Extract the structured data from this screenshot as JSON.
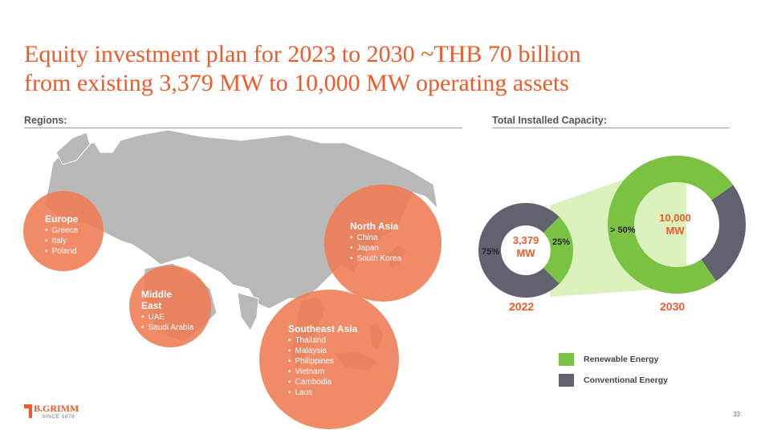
{
  "title": {
    "line1": "Equity investment plan for 2023 to 2030 ~THB 70 billion",
    "line2": "from existing 3,379 MW to 10,000 MW operating assets"
  },
  "regions_heading": "Regions:",
  "capacity_heading": "Total Installed Capacity:",
  "regions": [
    {
      "name": "Europe",
      "items": [
        "Greece",
        "Italy",
        "Poland"
      ]
    },
    {
      "name": "Middle East",
      "items": [
        "UAE",
        "Saudi Arabia"
      ]
    },
    {
      "name": "North Asia",
      "items": [
        "China",
        "Japan",
        "South Korea"
      ]
    },
    {
      "name": "Southeast Asia",
      "items": [
        "Thailand",
        "Malaysia",
        "Philippines",
        "Vietnam",
        "Cambodia",
        "Laos"
      ]
    }
  ],
  "chart_data": {
    "type": "pie",
    "title": "Total Installed Capacity:",
    "legend": [
      "Renewable Energy",
      "Conventional Energy"
    ],
    "colors": {
      "renewable": "#7cc242",
      "conventional": "#616270",
      "accent": "#ee5a2a"
    },
    "series": [
      {
        "name": "2022",
        "center_label": [
          "3,379",
          "MW"
        ],
        "values": [
          25,
          75
        ],
        "labels": [
          "25%",
          "75%"
        ]
      },
      {
        "name": "2030",
        "center_label": [
          "10,000",
          "MW"
        ],
        "values": [
          75,
          25
        ],
        "labels": [
          "> 50%"
        ]
      }
    ]
  },
  "logo": {
    "name": "B.GRIMM",
    "since": "SINCE 1878"
  },
  "page_number": "33"
}
